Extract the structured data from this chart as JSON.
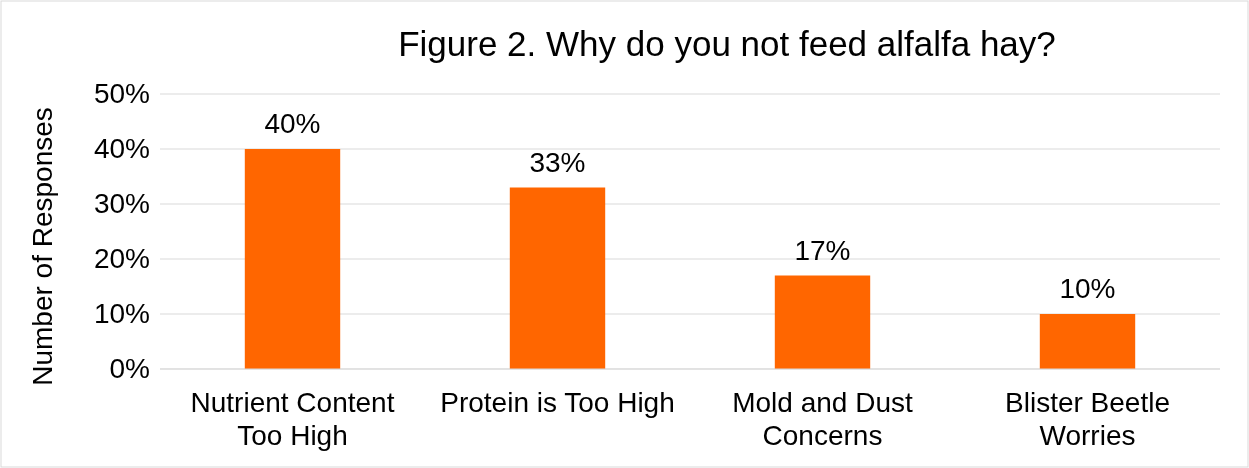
{
  "chart_data": {
    "type": "bar",
    "title": "Figure 2. Why do you not feed alfalfa hay?",
    "ylabel": "Number of Responses",
    "categories": [
      "Nutrient Content Too High",
      "Protein is Too High",
      "Mold and Dust Concerns",
      "Blister Beetle Worries"
    ],
    "values": [
      40,
      33,
      17,
      10
    ],
    "color": "#ff6600",
    "value_labels": [
      "40%",
      "33%",
      "17%",
      "10%"
    ],
    "ylim": [
      0,
      50
    ],
    "yticks": [
      {
        "value": 0,
        "label": "0%"
      },
      {
        "value": 10,
        "label": "10%"
      },
      {
        "value": 20,
        "label": "20%"
      },
      {
        "value": 30,
        "label": "30%"
      },
      {
        "value": 40,
        "label": "40%"
      },
      {
        "value": 50,
        "label": "50%"
      }
    ],
    "grid": "y"
  }
}
